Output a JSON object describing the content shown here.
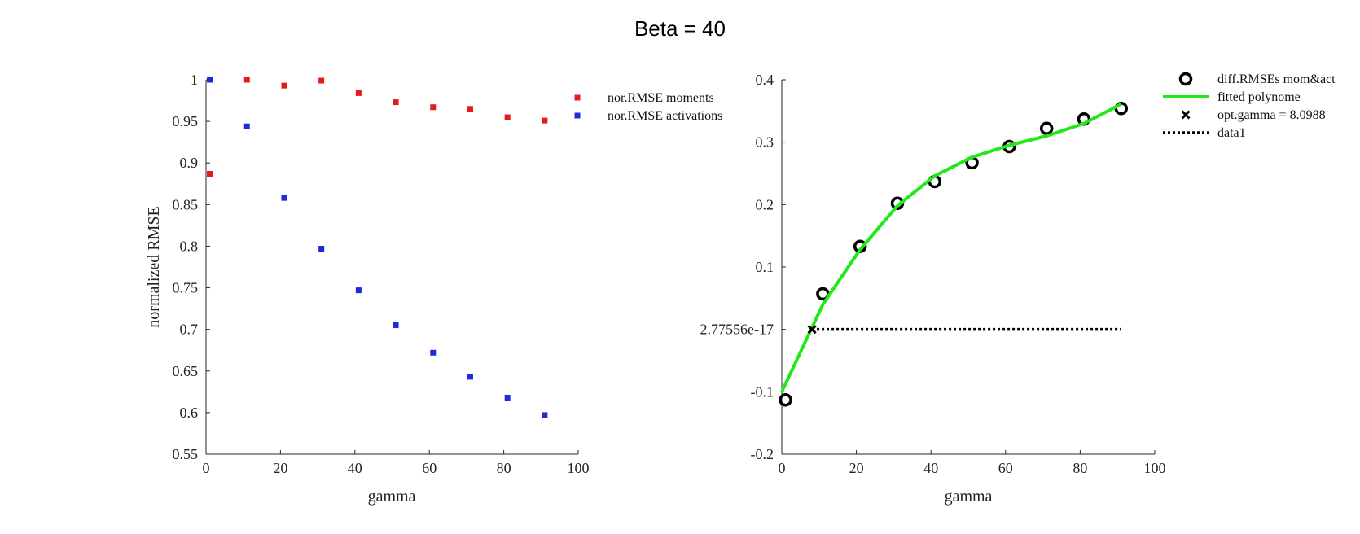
{
  "figure": {
    "title": "Beta = 40"
  },
  "chart_data": [
    {
      "type": "scatter",
      "xlabel": "gamma",
      "ylabel": "normalized RMSE",
      "xlim": [
        0,
        100
      ],
      "ylim": [
        0.55,
        1.0
      ],
      "xticks": [
        0,
        20,
        40,
        60,
        80,
        100
      ],
      "xtick_labels": [
        "0",
        "20",
        "40",
        "60",
        "80",
        "100"
      ],
      "yticks": [
        0.55,
        0.6,
        0.65,
        0.7,
        0.75,
        0.8,
        0.85,
        0.9,
        0.95,
        1.0
      ],
      "ytick_labels": [
        "0.55",
        "0.6",
        "0.65",
        "0.7",
        "0.75",
        "0.8",
        "0.85",
        "0.9",
        "0.95",
        "1"
      ],
      "grid": false,
      "legend_position": "outside-top-right",
      "series": [
        {
          "name": "nor.RMSE moments",
          "color": "#e41a1c",
          "marker": "square",
          "x": [
            1,
            11,
            21,
            31,
            41,
            51,
            61,
            71,
            81,
            91
          ],
          "y": [
            0.887,
            1.0,
            0.993,
            0.999,
            0.984,
            0.973,
            0.967,
            0.965,
            0.955,
            0.951
          ]
        },
        {
          "name": "nor.RMSE activations",
          "color": "#1f2bd8",
          "marker": "square",
          "x": [
            1,
            11,
            21,
            31,
            41,
            51,
            61,
            71,
            81,
            91
          ],
          "y": [
            1.0,
            0.944,
            0.858,
            0.797,
            0.747,
            0.705,
            0.672,
            0.643,
            0.618,
            0.597
          ]
        }
      ]
    },
    {
      "type": "line",
      "xlabel": "gamma",
      "ylabel": "",
      "xlim": [
        0,
        100
      ],
      "ylim": [
        -0.2,
        0.4
      ],
      "xticks": [
        0,
        20,
        40,
        60,
        80,
        100
      ],
      "xtick_labels": [
        "0",
        "20",
        "40",
        "60",
        "80",
        "100"
      ],
      "yticks": [
        -0.2,
        -0.1,
        2.77556e-17,
        0.1,
        0.2,
        0.3,
        0.4
      ],
      "ytick_labels": [
        "-0.2",
        "-0.1",
        "2.77556e-17",
        "0.1",
        "0.2",
        "0.3",
        "0.4"
      ],
      "grid": false,
      "legend_position": "outside-top-right",
      "series": [
        {
          "name": "diff.RMSEs mom&act",
          "color": "#000000",
          "marker": "circle",
          "x": [
            1,
            11,
            21,
            31,
            41,
            51,
            61,
            71,
            81,
            91
          ],
          "y": [
            -0.113,
            0.057,
            0.133,
            0.202,
            0.237,
            0.267,
            0.293,
            0.322,
            0.337,
            0.354
          ]
        },
        {
          "name": "fitted polynome",
          "color": "#22e81a",
          "marker": "none",
          "x": [
            0,
            11,
            21,
            31,
            41,
            51,
            61,
            71,
            81,
            91
          ],
          "y": [
            -0.1,
            0.04,
            0.128,
            0.198,
            0.246,
            0.276,
            0.295,
            0.31,
            0.33,
            0.361
          ]
        },
        {
          "name": "opt.gamma = 8.0988",
          "color": "#000000",
          "marker": "x",
          "x": [
            8.0988
          ],
          "y": [
            0.0
          ]
        },
        {
          "name": "data1",
          "color": "#000000",
          "marker": "none",
          "dash": "dotted",
          "x": [
            8.0988,
            91
          ],
          "y": [
            0.0,
            0.0
          ]
        }
      ]
    }
  ]
}
